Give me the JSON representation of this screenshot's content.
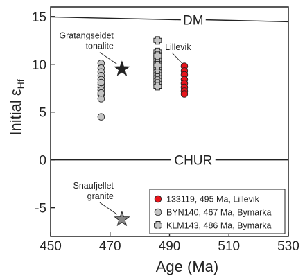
{
  "chart_data": {
    "type": "scatter",
    "xlabel": "Age (Ma)",
    "ylabel": {
      "main": "Initial ε",
      "sub": "Hf"
    },
    "xlim": [
      450,
      530
    ],
    "ylim": [
      -8,
      16
    ],
    "xticks": [
      450,
      470,
      490,
      510,
      530
    ],
    "yticks": [
      0,
      5,
      10,
      15
    ],
    "yticks_text": [
      {
        "v": -5,
        "t": "-5"
      }
    ],
    "reference_lines": [
      {
        "label": "DM",
        "x": [
          450,
          530
        ],
        "y": [
          14.95,
          14.45
        ],
        "label_x": 498
      },
      {
        "label": "CHUR",
        "x": [
          450,
          530
        ],
        "y": [
          0,
          0
        ],
        "label_x": 498
      }
    ],
    "series": [
      {
        "name": "133119, 495 Ma, Lillevik",
        "marker": "circle",
        "color": "#e8141b",
        "x": [
          495,
          495,
          495,
          495,
          495,
          495,
          495,
          495
        ],
        "y": [
          9.8,
          9.3,
          8.9,
          8.4,
          8.0,
          7.6,
          7.2,
          6.9
        ]
      },
      {
        "name": "BYN140, 467 Ma, Bymarka",
        "marker": "circle",
        "color": "#c4c4c4",
        "x": [
          467,
          467,
          467,
          467,
          467,
          467,
          467,
          467,
          467,
          467,
          467,
          467,
          467
        ],
        "y": [
          10.1,
          9.6,
          9.2,
          8.8,
          8.4,
          7.9,
          7.6,
          7.3,
          6.8,
          6.4,
          4.5,
          8.1,
          7.0
        ]
      },
      {
        "name": "KLM143, 486 Ma, Bymarka",
        "marker": "cross",
        "color": "#c4c4c4",
        "x": [
          486,
          486,
          486,
          486,
          486,
          486,
          486,
          486,
          486,
          486,
          486,
          486,
          486,
          486,
          486,
          486
        ],
        "y": [
          12.5,
          11.3,
          11.0,
          10.7,
          10.4,
          10.1,
          9.8,
          9.5,
          9.2,
          8.9,
          8.6,
          8.3,
          8.0,
          7.7,
          10.9,
          9.9
        ]
      }
    ],
    "stars": [
      {
        "label_lines": [
          "Gratangseidet",
          "tonalite"
        ],
        "x": 474,
        "y": 9.5,
        "color": "#222222"
      },
      {
        "label_lines": [
          "Snaufjellet",
          "granite"
        ],
        "x": 474,
        "y": -6.2,
        "color": "#888888"
      }
    ],
    "annotations": [
      {
        "text": "Lillevik",
        "x": 488.5,
        "y": 11.5
      }
    ],
    "legend": {
      "placement": "bottom-right"
    }
  }
}
